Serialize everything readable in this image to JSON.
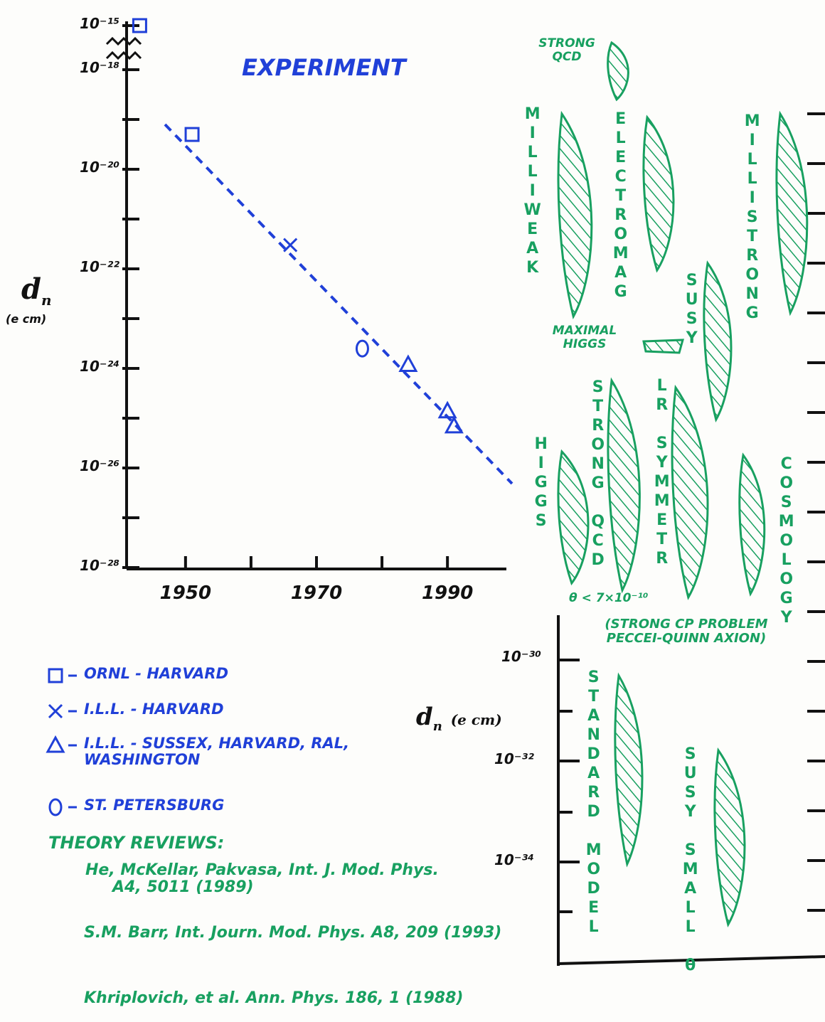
{
  "chart_data": {
    "type": "scatter",
    "title": "EXPERIMENT",
    "y_label": {
      "symbol": "d",
      "subscript": "n",
      "unit": "(e cm)"
    },
    "xlim": [
      1941,
      1999
    ],
    "xticks": [
      1950,
      1970,
      1990
    ],
    "xminor": [
      1960,
      1980
    ],
    "ylim": [
      1e-28,
      1e-18
    ],
    "log_y": true,
    "axis_break": true,
    "yticks": [
      {
        "value": 1e-15,
        "label": "10⁻¹⁵"
      },
      {
        "value": 1e-18,
        "label": "10⁻¹⁸"
      },
      {
        "value": 1e-20,
        "label": "10⁻²⁰"
      },
      {
        "value": 1e-22,
        "label": "10⁻²²"
      },
      {
        "value": 1e-24,
        "label": "10⁻²⁴"
      },
      {
        "value": 1e-26,
        "label": "10⁻²⁶"
      },
      {
        "value": 1e-28,
        "label": "10⁻²⁸"
      }
    ],
    "yminor": [
      1e-19,
      1e-21,
      1e-23,
      1e-25,
      1e-27
    ],
    "series": [
      {
        "name": "ORNL - HARVARD",
        "marker": "square",
        "color": "#2040d8",
        "x": [
          1943,
          1951
        ],
        "values": [
          1e-15,
          5e-20
        ]
      },
      {
        "name": "I.L.L. - HARVARD",
        "marker": "cross",
        "color": "#2040d8",
        "x": [
          1966
        ],
        "values": [
          3e-22
        ]
      },
      {
        "name": "I.L.L. - SUSSEX, HARVARD, RAL, WASHINGTON",
        "marker": "triangle",
        "color": "#2040d8",
        "x": [
          1984,
          1990,
          1991
        ],
        "values": [
          1.2e-24,
          1.4e-25,
          7e-26
        ]
      },
      {
        "name": "ST. PETERSBURG",
        "marker": "circle",
        "color": "#2040d8",
        "x": [
          1977
        ],
        "values": [
          2.5e-24
        ]
      }
    ]
  },
  "theory": {
    "strong_qcd_small": "STRONG QCD",
    "milliweak": "MILLIWEAK",
    "electromag": "ELECTROMAG",
    "millistrong": "MILLISTRONG",
    "susy": "SUSY",
    "maximal_higgs": "MAXIMAL HIGGS",
    "higgs": "HIGGS",
    "strong_qcd": "STRONG QCD",
    "lr_symmetr": "LR SYMMETR",
    "cosmology": "COSMOLOGY",
    "theta_bound": "θ < 7×10⁻¹⁰",
    "strong_cp": "(STRONG CP PROBLEM PECCEI-QUINN AXION)",
    "standard_model": "STANDARD MODEL",
    "susy_small_theta": "SUSY SMALL θ",
    "axis_label": {
      "symbol": "d",
      "subscript": "n",
      "unit": "(e cm)"
    },
    "axis_ticks": [
      "10⁻³⁰",
      "10⁻³²",
      "10⁻³⁴"
    ]
  },
  "theory_reviews": {
    "heading": "THEORY REVIEWS:",
    "refs": [
      "He, McKellar, Pakvasa, Int. J. Mod. Phys. A4, 5011 (1989)",
      "S.M. Barr, Int. Journ. Mod. Phys. A8, 209 (1993)",
      "Khriplovich, et al. Ann. Phys. 186, 1 (1988)"
    ]
  }
}
